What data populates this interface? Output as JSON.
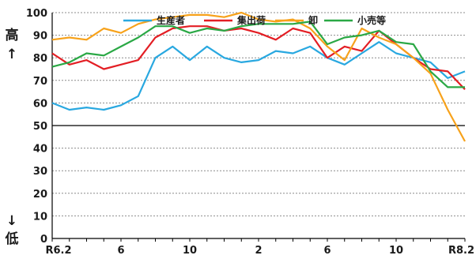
{
  "chart_data": {
    "type": "line",
    "ylim": [
      0,
      100
    ],
    "yticks": [
      0,
      10,
      20,
      30,
      40,
      50,
      60,
      70,
      80,
      90,
      100
    ],
    "reference_line": 50,
    "grid": "horizontal-dotted",
    "legend_position": "top",
    "x_tick_labels": [
      "R6.2",
      "6",
      "10",
      "2",
      "6",
      "10",
      "R8.2"
    ],
    "x_tick_positions": [
      0,
      4,
      8,
      12,
      16,
      20,
      24
    ],
    "y_side_labels": {
      "high": "高",
      "up_arrow": "↑",
      "down_arrow": "↓",
      "low": "低"
    },
    "series": [
      {
        "name": "生産者",
        "color": "#29a8e0",
        "values": [
          60,
          57,
          58,
          57,
          59,
          63,
          80,
          85,
          79,
          85,
          80,
          78,
          79,
          83,
          82,
          85,
          80,
          77,
          82,
          87,
          82,
          80,
          78,
          71,
          74
        ]
      },
      {
        "name": "集出荷",
        "color": "#e31e24",
        "values": [
          82,
          77,
          79,
          75,
          77,
          79,
          89,
          93,
          94,
          94,
          92,
          93,
          91,
          88,
          93,
          91,
          80,
          85,
          83,
          92,
          86,
          80,
          75,
          74,
          66
        ]
      },
      {
        "name": "卸",
        "color": "#f7a21b",
        "values": [
          88,
          89,
          88,
          93,
          91,
          95,
          97,
          98,
          99,
          99,
          98,
          100,
          97,
          96,
          97,
          93,
          85,
          79,
          93,
          89,
          86,
          80,
          73,
          57,
          43
        ]
      },
      {
        "name": "小売等",
        "color": "#2aa845",
        "values": [
          76,
          78,
          82,
          81,
          85,
          89,
          94,
          94,
          91,
          93,
          92,
          94,
          95,
          95,
          95,
          96,
          86,
          89,
          90,
          92,
          87,
          86,
          74,
          67,
          67
        ]
      }
    ]
  }
}
